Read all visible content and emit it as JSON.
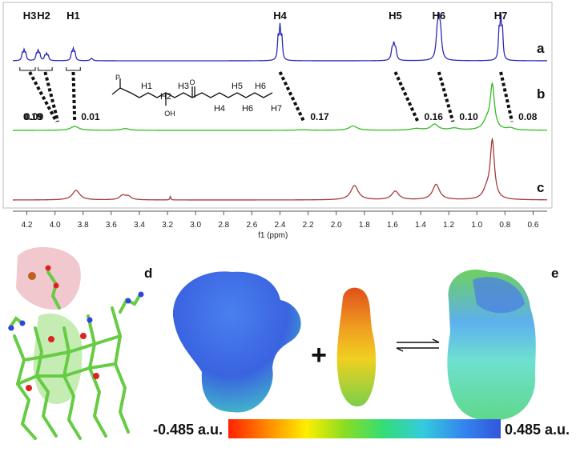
{
  "chart_data": [
    {
      "type": "line",
      "xlabel": "f1 (ppm)",
      "xlim": [
        4.3,
        0.5
      ],
      "x_reversed": true,
      "ticks": [
        4.2,
        4.0,
        3.8,
        3.6,
        3.4,
        3.2,
        3.0,
        2.8,
        2.6,
        2.4,
        2.2,
        2.0,
        1.8,
        1.6,
        1.4,
        1.2,
        1.0,
        0.8,
        0.6
      ],
      "tick_labels": [
        "4.2",
        "4.0",
        "3.8",
        "3.6",
        "3.4",
        "3.2",
        "3.0",
        "2.8",
        "2.6",
        "2.4",
        "2.2",
        "2.0",
        "1.8",
        "1.6",
        "1.4",
        "1.2",
        "1.0",
        "0.8",
        "0.6"
      ],
      "series": [
        {
          "name": "a",
          "color": "#2b2bb8",
          "peaks": [
            {
              "ppm": 4.22,
              "height": 0.3,
              "width": 0.006,
              "multiplet": 3,
              "spacing": 0.012
            },
            {
              "ppm": 4.12,
              "height": 0.28,
              "width": 0.006,
              "multiplet": 3,
              "spacing": 0.012
            },
            {
              "ppm": 4.06,
              "height": 0.2,
              "width": 0.006,
              "multiplet": 3,
              "spacing": 0.012
            },
            {
              "ppm": 3.87,
              "height": 0.33,
              "width": 0.006,
              "multiplet": 3,
              "spacing": 0.012
            },
            {
              "ppm": 3.74,
              "height": 0.08,
              "width": 0.01,
              "multiplet": 1,
              "spacing": 0
            },
            {
              "ppm": 2.4,
              "height": 1.0,
              "width": 0.006,
              "multiplet": 3,
              "spacing": 0.013
            },
            {
              "ppm": 1.59,
              "height": 0.45,
              "width": 0.008,
              "multiplet": 3,
              "spacing": 0.013
            },
            {
              "ppm": 1.27,
              "height": 1.0,
              "width": 0.01,
              "multiplet": 3,
              "spacing": 0.012
            },
            {
              "ppm": 0.83,
              "height": 1.25,
              "width": 0.006,
              "multiplet": 3,
              "spacing": 0.012
            }
          ]
        },
        {
          "name": "b",
          "color": "#33bb22",
          "peaks": [
            {
              "ppm": 3.86,
              "height": 0.2,
              "width": 0.035
            },
            {
              "ppm": 3.5,
              "height": 0.09,
              "width": 0.035
            },
            {
              "ppm": 2.24,
              "height": 0.03,
              "width": 0.05
            },
            {
              "ppm": 1.88,
              "height": 0.22,
              "width": 0.035
            },
            {
              "ppm": 1.43,
              "height": 0.08,
              "width": 0.05
            },
            {
              "ppm": 1.3,
              "height": 0.3,
              "width": 0.03
            },
            {
              "ppm": 1.16,
              "height": 0.1,
              "width": 0.04
            },
            {
              "ppm": 0.89,
              "height": 2.2,
              "width": 0.018
            },
            {
              "ppm": 0.93,
              "height": 0.4,
              "width": 0.03
            },
            {
              "ppm": 0.76,
              "height": 0.1,
              "width": 0.03
            }
          ]
        },
        {
          "name": "c",
          "color": "#a83a3a",
          "peaks": [
            {
              "ppm": 3.85,
              "height": 0.5,
              "width": 0.032
            },
            {
              "ppm": 3.52,
              "height": 0.22,
              "width": 0.025
            },
            {
              "ppm": 3.48,
              "height": 0.18,
              "width": 0.025
            },
            {
              "ppm": 3.18,
              "height": 0.18,
              "width": 0.004
            },
            {
              "ppm": 1.87,
              "height": 0.75,
              "width": 0.032
            },
            {
              "ppm": 1.58,
              "height": 0.45,
              "width": 0.03
            },
            {
              "ppm": 1.29,
              "height": 0.8,
              "width": 0.03
            },
            {
              "ppm": 0.89,
              "height": 3.0,
              "width": 0.018
            },
            {
              "ppm": 0.93,
              "height": 0.45,
              "width": 0.03
            }
          ]
        }
      ],
      "proton_labels": [
        {
          "text": "H3",
          "ppm": 4.18
        },
        {
          "text": "H2",
          "ppm": 4.08
        },
        {
          "text": "H1",
          "ppm": 3.87
        },
        {
          "text": "H4",
          "ppm": 2.4
        },
        {
          "text": "H5",
          "ppm": 1.58
        },
        {
          "text": "H6",
          "ppm": 1.27
        },
        {
          "text": "H7",
          "ppm": 0.83
        }
      ],
      "shift_labels": [
        {
          "text": "0.19",
          "from_ppm": 4.18,
          "to_ppm": 3.99
        },
        {
          "text": "0.09",
          "from_ppm": 4.07,
          "to_ppm": 3.98
        },
        {
          "text": "0.01",
          "from_ppm": 3.87,
          "to_ppm": 3.86
        },
        {
          "text": "0.17",
          "from_ppm": 2.4,
          "to_ppm": 2.23
        },
        {
          "text": "0.16",
          "from_ppm": 1.58,
          "to_ppm": 1.42
        },
        {
          "text": "0.10",
          "from_ppm": 1.27,
          "to_ppm": 1.17
        },
        {
          "text": "0.08",
          "from_ppm": 0.83,
          "to_ppm": 0.75
        }
      ],
      "structure_labels": [
        "H1",
        "H2",
        "H3",
        "H4",
        "H5",
        "H6",
        "H6",
        "H7",
        "OH",
        "P",
        "O"
      ],
      "colors": {
        "dash": "#111111",
        "axis": "#555555",
        "frame": "#bbbbbb"
      }
    },
    {
      "type": "other",
      "panel_labels": [
        "d",
        "e"
      ],
      "colorbar": {
        "min_label": "-0.485 a.u.",
        "max_label": "0.485 a.u.",
        "min": -0.485,
        "max": 0.485,
        "stops": [
          "#ff2200",
          "#ff8800",
          "#ffee00",
          "#88dd22",
          "#33dd77",
          "#33ccdd",
          "#3388ee",
          "#3355dd"
        ]
      },
      "operators": {
        "plus": "+"
      },
      "surface_colors": {
        "host_top": "#3a63e0",
        "host_bottom": "#40cfc5",
        "guest_top": "#e0501a",
        "guest_mid": "#f0d020",
        "guest_bottom": "#7ad04a",
        "complex_top": "#6fd060",
        "complex_bottom": "#5fd88a",
        "stick": "#66cc44",
        "oxygen": "#dd2222",
        "nitrogen": "#3344dd"
      }
    }
  ]
}
